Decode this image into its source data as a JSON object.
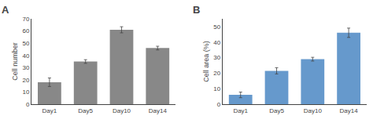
{
  "chart_data": [
    {
      "type": "bar",
      "title": "A",
      "categories": [
        "Day1",
        "Day5",
        "Day10",
        "Day14"
      ],
      "values": [
        18,
        35,
        61,
        46
      ],
      "errors": [
        3.5,
        1.5,
        2.5,
        1.5
      ],
      "color": "#888888",
      "ylabel": "Cell number",
      "ylim": [
        0,
        70
      ],
      "yticks": [
        0,
        10,
        20,
        30,
        40,
        50,
        60,
        70
      ],
      "grid": false
    },
    {
      "type": "bar",
      "title": "B",
      "categories": [
        "Day1",
        "Day5",
        "Day10",
        "Day14"
      ],
      "values": [
        6,
        21.5,
        29,
        46
      ],
      "errors": [
        1.8,
        2.0,
        1.2,
        3.0
      ],
      "color": "#6699cc",
      "ylabel": "Cell area (%)",
      "ylim": [
        0,
        55
      ],
      "yticks": [
        0,
        10,
        20,
        30,
        40,
        50
      ],
      "grid": false
    }
  ]
}
